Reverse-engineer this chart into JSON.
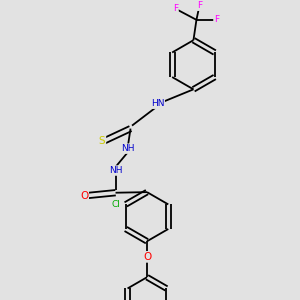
{
  "bg_color": "#e2e2e2",
  "bond_color": "#000000",
  "bond_lw": 1.3,
  "atom_colors": {
    "N": "#0000cc",
    "O": "#ff0000",
    "S": "#cccc00",
    "Cl": "#00aa00",
    "F": "#ff00ff",
    "H": "#008888",
    "C": "#000000"
  },
  "fs": 6.5,
  "figsize": [
    3.0,
    3.0
  ],
  "dpi": 100,
  "xlim": [
    0,
    10
  ],
  "ylim": [
    0,
    10
  ]
}
